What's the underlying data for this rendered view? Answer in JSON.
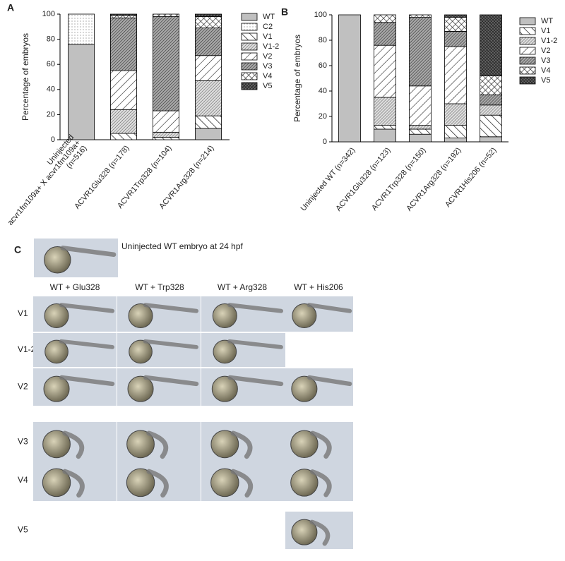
{
  "chart_data": [
    {
      "type": "bar",
      "stacked": true,
      "panel": "A",
      "y_label": "Percentage of embryos",
      "categories": [
        "Uninjected\nacvr1fm109a+ X acvr1fm109a+\n(n=516)",
        "ACVR1Glu328 (n=178)",
        "ACVR1Trp328 (n=104)",
        "ACVR1Arg328 (n=214)"
      ],
      "ylim": [
        0,
        100
      ],
      "yticks": [
        0,
        20,
        40,
        60,
        80,
        100
      ],
      "legend": "right",
      "series": [
        {
          "name": "WT",
          "color": "#c0c0c0",
          "pattern": "solid",
          "values": [
            76,
            0,
            0,
            9
          ]
        },
        {
          "name": "C2",
          "color": "#ffffff",
          "pattern": "dots",
          "values": [
            24,
            0,
            0,
            0
          ]
        },
        {
          "name": "V1",
          "color": "#ffffff",
          "pattern": "back",
          "values": [
            0,
            5,
            2,
            10
          ]
        },
        {
          "name": "V1-2",
          "color": "#999999",
          "pattern": "dense",
          "values": [
            0,
            19,
            4,
            28
          ]
        },
        {
          "name": "V2",
          "color": "#ffffff",
          "pattern": "fwd",
          "values": [
            0,
            31,
            17,
            20
          ]
        },
        {
          "name": "V3",
          "color": "#666666",
          "pattern": "darkdense",
          "values": [
            0,
            42,
            75,
            22
          ]
        },
        {
          "name": "V4",
          "color": "#ffffff",
          "pattern": "cross",
          "values": [
            0,
            2,
            2,
            9
          ]
        },
        {
          "name": "V5",
          "color": "#333333",
          "pattern": "darkcross",
          "values": [
            0,
            1,
            0,
            2
          ]
        }
      ]
    },
    {
      "type": "bar",
      "stacked": true,
      "panel": "B",
      "y_label": "Percentage of embryos",
      "categories": [
        "Uninjected WT (n=342)",
        "ACVR1Glu328 (n=123)",
        "ACVR1Trp328 (n=150)",
        "ACVR1Arg328 (n=192)",
        "ACVR1His206 (n=52)"
      ],
      "ylim": [
        0,
        100
      ],
      "yticks": [
        0,
        20,
        40,
        60,
        80,
        100
      ],
      "legend": "right",
      "series": [
        {
          "name": "WT",
          "color": "#c0c0c0",
          "pattern": "solid",
          "values": [
            100,
            10,
            6,
            3,
            4
          ]
        },
        {
          "name": "V1",
          "color": "#ffffff",
          "pattern": "back",
          "values": [
            0,
            3,
            4,
            10,
            17
          ]
        },
        {
          "name": "V1-2",
          "color": "#999999",
          "pattern": "dense",
          "values": [
            0,
            22,
            3,
            17,
            8
          ]
        },
        {
          "name": "V2",
          "color": "#ffffff",
          "pattern": "fwd",
          "values": [
            0,
            41,
            31,
            45,
            0
          ]
        },
        {
          "name": "V3",
          "color": "#666666",
          "pattern": "darkdense",
          "values": [
            0,
            18,
            54,
            12,
            8
          ]
        },
        {
          "name": "V4",
          "color": "#ffffff",
          "pattern": "cross",
          "values": [
            0,
            6,
            2,
            11,
            15
          ]
        },
        {
          "name": "V5",
          "color": "#333333",
          "pattern": "darkcross",
          "values": [
            0,
            0,
            0,
            2,
            48
          ]
        }
      ]
    }
  ],
  "panel_c": {
    "label": "C",
    "caption": "Uninjected WT embryo at 24 hpf",
    "columns": [
      "WT + Glu328",
      "WT + Trp328",
      "WT + Arg328",
      "WT + His206"
    ],
    "rows": [
      "V1",
      "V1-2",
      "V2",
      "V3",
      "V4",
      "V5"
    ]
  }
}
